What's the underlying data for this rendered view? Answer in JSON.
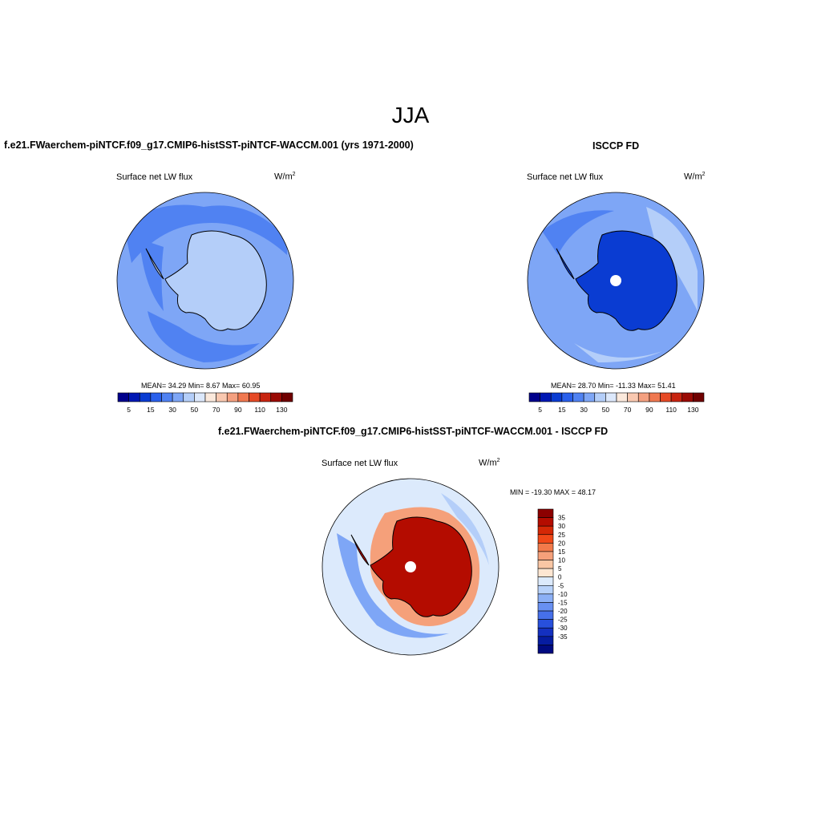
{
  "title": "JJA",
  "panels": [
    {
      "title": "f.e21.FWaerchem-piNTCF.f09_g17.CMIP6-histSST-piNTCF-WACCM.001 (yrs 1971-2000)",
      "variable_label": "Surface net LW flux",
      "units_base": "W/m",
      "units_exp": "2",
      "stats_text": "MEAN=  34.29  Min=   8.67  Max=  60.95",
      "mean": 34.29,
      "min": 8.67,
      "max": 60.95
    },
    {
      "title": "ISCCP FD",
      "variable_label": "Surface net LW flux",
      "units_base": "W/m",
      "units_exp": "2",
      "stats_text": "MEAN=  28.70  Min= -11.33  Max=  51.41",
      "mean": 28.7,
      "min": -11.33,
      "max": 51.41
    },
    {
      "title": "f.e21.FWaerchem-piNTCF.f09_g17.CMIP6-histSST-piNTCF-WACCM.001 - ISCCP FD",
      "variable_label": "Surface net LW flux",
      "units_base": "W/m",
      "units_exp": "2",
      "stats_text": "MIN = -19.30 MAX =  48.17",
      "min": -19.3,
      "max": 48.17
    }
  ],
  "abs_colorbar": {
    "colors": [
      "#00008c",
      "#0018b4",
      "#0a3cd2",
      "#2a60ec",
      "#5082f2",
      "#7ea6f6",
      "#b4cef9",
      "#dce8fb",
      "#fbe9dc",
      "#f9c8b0",
      "#f4a080",
      "#f07850",
      "#e64a26",
      "#c82410",
      "#9a0a04",
      "#700000"
    ],
    "tick_labels": [
      "5",
      "15",
      "30",
      "50",
      "70",
      "90",
      "110",
      "130"
    ]
  },
  "diff_colorbar": {
    "colors": [
      "#8c0000",
      "#b40c00",
      "#d42806",
      "#f04818",
      "#f27a4a",
      "#f5a07a",
      "#f9c6a4",
      "#fde6d2",
      "#dceafc",
      "#b8d2fa",
      "#8cb0f6",
      "#6890f2",
      "#4670ea",
      "#2850dc",
      "#1430c0",
      "#061ca0",
      "#000a80"
    ],
    "tick_labels": [
      "35",
      "30",
      "25",
      "20",
      "15",
      "10",
      "5",
      "0",
      "-5",
      "-10",
      "-15",
      "-20",
      "-25",
      "-30",
      "-35"
    ]
  },
  "map_colors": {
    "ocean_mid": "#7ea6f6",
    "ocean_dark": "#5082f2",
    "ocean_light": "#b4cef9",
    "continent_light": "#b4cef9",
    "continent_dark": "#0a3cd2",
    "diff_ocean": "#dceafc",
    "diff_continent": "#b40c00",
    "pole_hole": "#ffffff",
    "coastline": "#000000"
  }
}
